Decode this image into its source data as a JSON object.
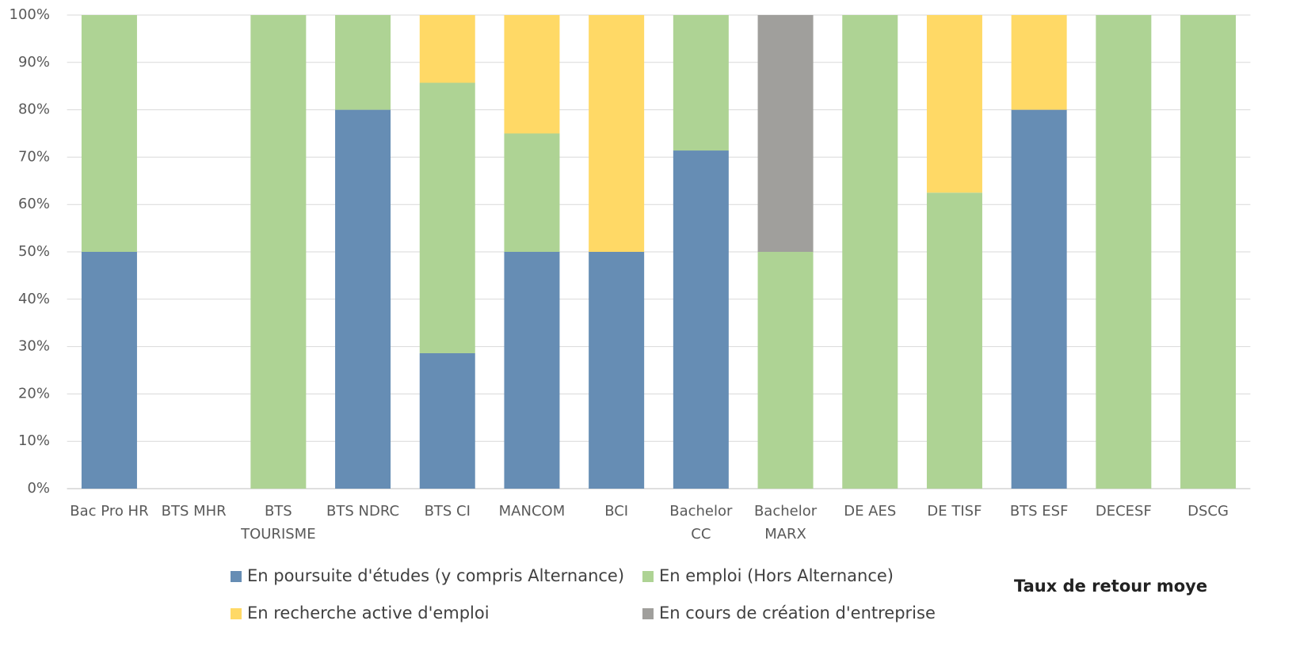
{
  "chart_data": {
    "type": "stacked-bar",
    "categories": [
      "Bac Pro HR",
      "BTS MHR",
      "BTS TOURISME",
      "BTS NDRC",
      "BTS CI",
      "MANCOM",
      "BCI",
      "Bachelor CC",
      "Bachelor MARX",
      "DE AES",
      "DE TISF",
      "BTS ESF",
      "DECESF",
      "DSCG"
    ],
    "series": [
      {
        "name": "En poursuite d'études (y compris Alternance)",
        "color": "#668db4",
        "values": [
          50,
          0,
          0,
          80,
          28.6,
          50,
          50,
          71.4,
          0,
          0,
          0,
          80,
          0,
          0
        ]
      },
      {
        "name": "En emploi (Hors Alternance)",
        "color": "#aed394",
        "values": [
          50,
          0,
          100,
          20,
          57.1,
          25,
          0,
          28.6,
          50,
          100,
          62.5,
          0,
          100,
          100
        ]
      },
      {
        "name": "En recherche active  d'emploi",
        "color": "#ffd966",
        "values": [
          0,
          0,
          0,
          0,
          14.3,
          25,
          50,
          0,
          0,
          0,
          37.5,
          20,
          0,
          0
        ]
      },
      {
        "name": "En cours de création d'entreprise",
        "color": "#a09f9c",
        "values": [
          0,
          0,
          0,
          0,
          0,
          0,
          0,
          0,
          50,
          0,
          0,
          0,
          0,
          0
        ]
      }
    ],
    "ylim": [
      0,
      100
    ],
    "yticks": [
      {
        "value": 0,
        "label": "0%"
      },
      {
        "value": 10,
        "label": "10%"
      },
      {
        "value": 20,
        "label": "20%"
      },
      {
        "value": 30,
        "label": "30%"
      },
      {
        "value": 40,
        "label": "40%"
      },
      {
        "value": 50,
        "label": "50%"
      },
      {
        "value": 60,
        "label": "60%"
      },
      {
        "value": 70,
        "label": "70%"
      },
      {
        "value": 80,
        "label": "80%"
      },
      {
        "value": 90,
        "label": "90%"
      },
      {
        "value": 100,
        "label": "100%"
      }
    ],
    "grid": true,
    "annotation": "Taux de retour moye"
  }
}
